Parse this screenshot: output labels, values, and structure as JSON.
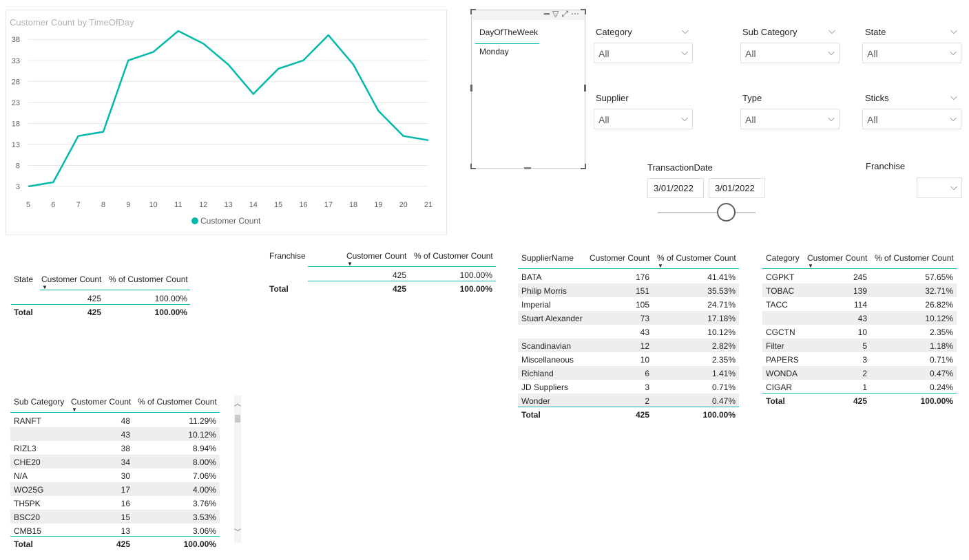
{
  "line_chart": {
    "title": "Customer Count by TimeOfDay",
    "legend": "Customer Count",
    "accent_color": "#01b8aa"
  },
  "chart_data": {
    "type": "line",
    "title": "Customer Count by TimeOfDay",
    "x": [
      5,
      6,
      7,
      8,
      9,
      10,
      11,
      12,
      13,
      14,
      15,
      16,
      17,
      18,
      19,
      20,
      21
    ],
    "series": [
      {
        "name": "Customer Count",
        "values": [
          3,
          4,
          15,
          16,
          33,
          35,
          40,
          37,
          32,
          25,
          31,
          33,
          39,
          32,
          21,
          15,
          14
        ]
      }
    ],
    "yticks": [
      3,
      8,
      13,
      18,
      23,
      28,
      33,
      38
    ],
    "ylim": [
      3,
      40
    ],
    "grid": true,
    "legend_position": "bottom"
  },
  "dow_slicer": {
    "title": "DayOfTheWeek",
    "value": "Monday",
    "icons": [
      "hamburger-icon",
      "filter-icon",
      "focus-icon",
      "more-icon"
    ]
  },
  "slicers": {
    "category": {
      "label": "Category",
      "value": "All"
    },
    "sub_category": {
      "label": "Sub Category",
      "value": "All"
    },
    "state": {
      "label": "State",
      "value": "All"
    },
    "supplier": {
      "label": "Supplier",
      "value": "All"
    },
    "type": {
      "label": "Type",
      "value": "All"
    },
    "sticks": {
      "label": "Sticks",
      "value": "All"
    },
    "franchise": {
      "label": "Franchise",
      "value": ""
    }
  },
  "date_slicer": {
    "label": "TransactionDate",
    "start": "3/01/2022",
    "end": "3/01/2022"
  },
  "state_table": {
    "headers": [
      "State",
      "Customer Count",
      "% of Customer Count"
    ],
    "rows": [
      [
        "",
        "425",
        "100.00%"
      ]
    ],
    "total": [
      "Total",
      "425",
      "100.00%"
    ]
  },
  "franchise_table": {
    "headers": [
      "Franchise",
      "Customer Count",
      "% of Customer Count"
    ],
    "rows": [
      [
        "",
        "425",
        "100.00%"
      ]
    ],
    "total": [
      "Total",
      "425",
      "100.00%"
    ]
  },
  "supplier_table": {
    "headers": [
      "SupplierName",
      "Customer Count",
      "% of Customer Count"
    ],
    "rows": [
      [
        "BATA",
        "176",
        "41.41%"
      ],
      [
        "Philip Morris",
        "151",
        "35.53%"
      ],
      [
        "Imperial",
        "105",
        "24.71%"
      ],
      [
        "Stuart Alexander",
        "73",
        "17.18%"
      ],
      [
        "",
        "43",
        "10.12%"
      ],
      [
        "Scandinavian",
        "12",
        "2.82%"
      ],
      [
        "Miscellaneous",
        "10",
        "2.35%"
      ],
      [
        "Richland",
        "6",
        "1.41%"
      ],
      [
        "JD Suppliers",
        "3",
        "0.71%"
      ],
      [
        "Wonder",
        "2",
        "0.47%"
      ]
    ],
    "total": [
      "Total",
      "425",
      "100.00%"
    ]
  },
  "category_table": {
    "headers": [
      "Category",
      "Customer Count",
      "% of Customer Count"
    ],
    "rows": [
      [
        "CGPKT",
        "245",
        "57.65%"
      ],
      [
        "TOBAC",
        "139",
        "32.71%"
      ],
      [
        "TACC",
        "114",
        "26.82%"
      ],
      [
        "",
        "43",
        "10.12%"
      ],
      [
        "CGCTN",
        "10",
        "2.35%"
      ],
      [
        "Filter",
        "5",
        "1.18%"
      ],
      [
        "PAPERS",
        "3",
        "0.71%"
      ],
      [
        "WONDA",
        "2",
        "0.47%"
      ],
      [
        "CIGAR",
        "1",
        "0.24%"
      ]
    ],
    "total": [
      "Total",
      "425",
      "100.00%"
    ]
  },
  "subcategory_table": {
    "headers": [
      "Sub Category",
      "Customer Count",
      "% of Customer Count"
    ],
    "rows": [
      [
        "RANFT",
        "48",
        "11.29%"
      ],
      [
        "",
        "43",
        "10.12%"
      ],
      [
        "RIZL3",
        "38",
        "8.94%"
      ],
      [
        "CHE20",
        "34",
        "8.00%"
      ],
      [
        "N/A",
        "30",
        "7.06%"
      ],
      [
        "WO25G",
        "17",
        "4.00%"
      ],
      [
        "TH5PK",
        "16",
        "3.76%"
      ],
      [
        "BSC20",
        "15",
        "3.53%"
      ],
      [
        "CMB15",
        "13",
        "3.06%"
      ]
    ],
    "total": [
      "Total",
      "425",
      "100.00%"
    ]
  }
}
